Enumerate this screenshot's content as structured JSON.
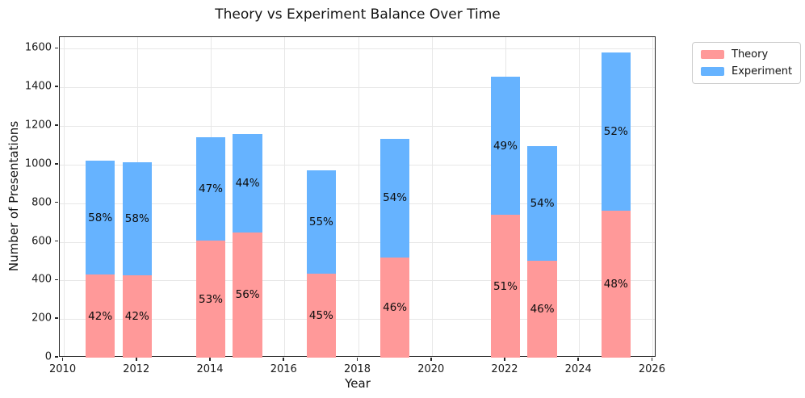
{
  "chart_data": {
    "type": "bar",
    "stacked": true,
    "title": "Theory vs Experiment Balance Over Time",
    "xlabel": "Year",
    "ylabel": "Number of Presentations",
    "x": [
      2011,
      2012,
      2014,
      2015,
      2017,
      2019,
      2022,
      2023,
      2025
    ],
    "series": [
      {
        "name": "Theory",
        "color": "#ff9999",
        "values": [
          430,
          425,
          605,
          650,
          435,
          520,
          740,
          500,
          760
        ],
        "labels": [
          "42%",
          "42%",
          "53%",
          "56%",
          "45%",
          "46%",
          "51%",
          "46%",
          "48%"
        ]
      },
      {
        "name": "Experiment",
        "color": "#66b3ff",
        "values": [
          590,
          585,
          535,
          510,
          535,
          615,
          715,
          595,
          820
        ],
        "labels": [
          "58%",
          "58%",
          "47%",
          "44%",
          "55%",
          "54%",
          "49%",
          "54%",
          "52%"
        ]
      }
    ],
    "totals": [
      1020,
      1010,
      1140,
      1160,
      970,
      1135,
      1455,
      1095,
      1580
    ],
    "xticks": [
      2010,
      2012,
      2014,
      2016,
      2018,
      2020,
      2022,
      2024,
      2026
    ],
    "yticks": [
      0,
      200,
      400,
      600,
      800,
      1000,
      1200,
      1400,
      1600
    ],
    "xlim": [
      2009.9,
      2026.1
    ],
    "ylim": [
      0,
      1660
    ],
    "bar_width_years": 0.8,
    "grid": true,
    "grid_color": "#e7e7e7",
    "legend_position": "outside-upper-right",
    "label_color": "#0d0d0d"
  }
}
